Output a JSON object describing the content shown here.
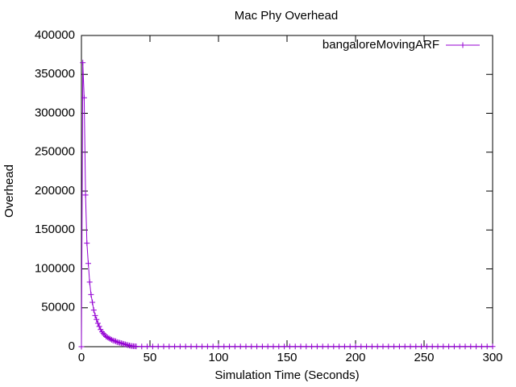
{
  "chart_data": {
    "type": "line",
    "title": "Mac Phy Overhead",
    "xlabel": "Simulation Time (Seconds)",
    "ylabel": "Overhead",
    "x": [
      0,
      1,
      2,
      3,
      4,
      5,
      6,
      7,
      8,
      9,
      10,
      11,
      12,
      13,
      14,
      15,
      16,
      17,
      18,
      19,
      20,
      21,
      22,
      23,
      24,
      25,
      26,
      27,
      28,
      29,
      30,
      31,
      32,
      33,
      34,
      35,
      36,
      37,
      38,
      39,
      40,
      44,
      48,
      52,
      56,
      60,
      64,
      68,
      72,
      76,
      80,
      84,
      88,
      92,
      96,
      100,
      104,
      108,
      112,
      116,
      120,
      124,
      128,
      132,
      136,
      140,
      144,
      148,
      152,
      156,
      160,
      164,
      168,
      172,
      176,
      180,
      184,
      188,
      192,
      196,
      200,
      204,
      208,
      212,
      216,
      220,
      224,
      228,
      232,
      236,
      240,
      244,
      248,
      252,
      256,
      260,
      264,
      268,
      272,
      276,
      280,
      284,
      288,
      292,
      296,
      300
    ],
    "series": [
      {
        "name": "bangaloreMovingARF",
        "color": "#9400d3",
        "values": [
          0,
          365000,
          320000,
          195000,
          133000,
          107000,
          83000,
          67000,
          57000,
          47000,
          40000,
          35000,
          30000,
          26000,
          22000,
          19000,
          17000,
          15000,
          13000,
          12000,
          11000,
          10000,
          9000,
          8000,
          7500,
          7000,
          6000,
          5500,
          5000,
          4500,
          4000,
          3500,
          3000,
          2500,
          2000,
          1500,
          1000,
          800,
          600,
          500,
          400,
          300,
          300,
          300,
          300,
          300,
          200,
          200,
          200,
          200,
          200,
          200,
          200,
          200,
          200,
          200,
          200,
          200,
          200,
          200,
          200,
          200,
          200,
          200,
          200,
          200,
          200,
          200,
          200,
          200,
          200,
          200,
          200,
          200,
          200,
          200,
          200,
          200,
          200,
          200,
          200,
          200,
          200,
          200,
          200,
          200,
          200,
          200,
          200,
          200,
          200,
          200,
          200,
          200,
          200,
          200,
          200,
          200,
          200,
          200,
          200,
          200,
          200,
          200,
          200,
          200
        ]
      }
    ],
    "xlim": [
      0,
      300
    ],
    "xticks": [
      0,
      50,
      100,
      150,
      200,
      250,
      300
    ],
    "ylim": [
      0,
      400000
    ],
    "yticks": [
      0,
      50000,
      100000,
      150000,
      200000,
      250000,
      300000,
      350000,
      400000
    ],
    "legend": "top right"
  }
}
